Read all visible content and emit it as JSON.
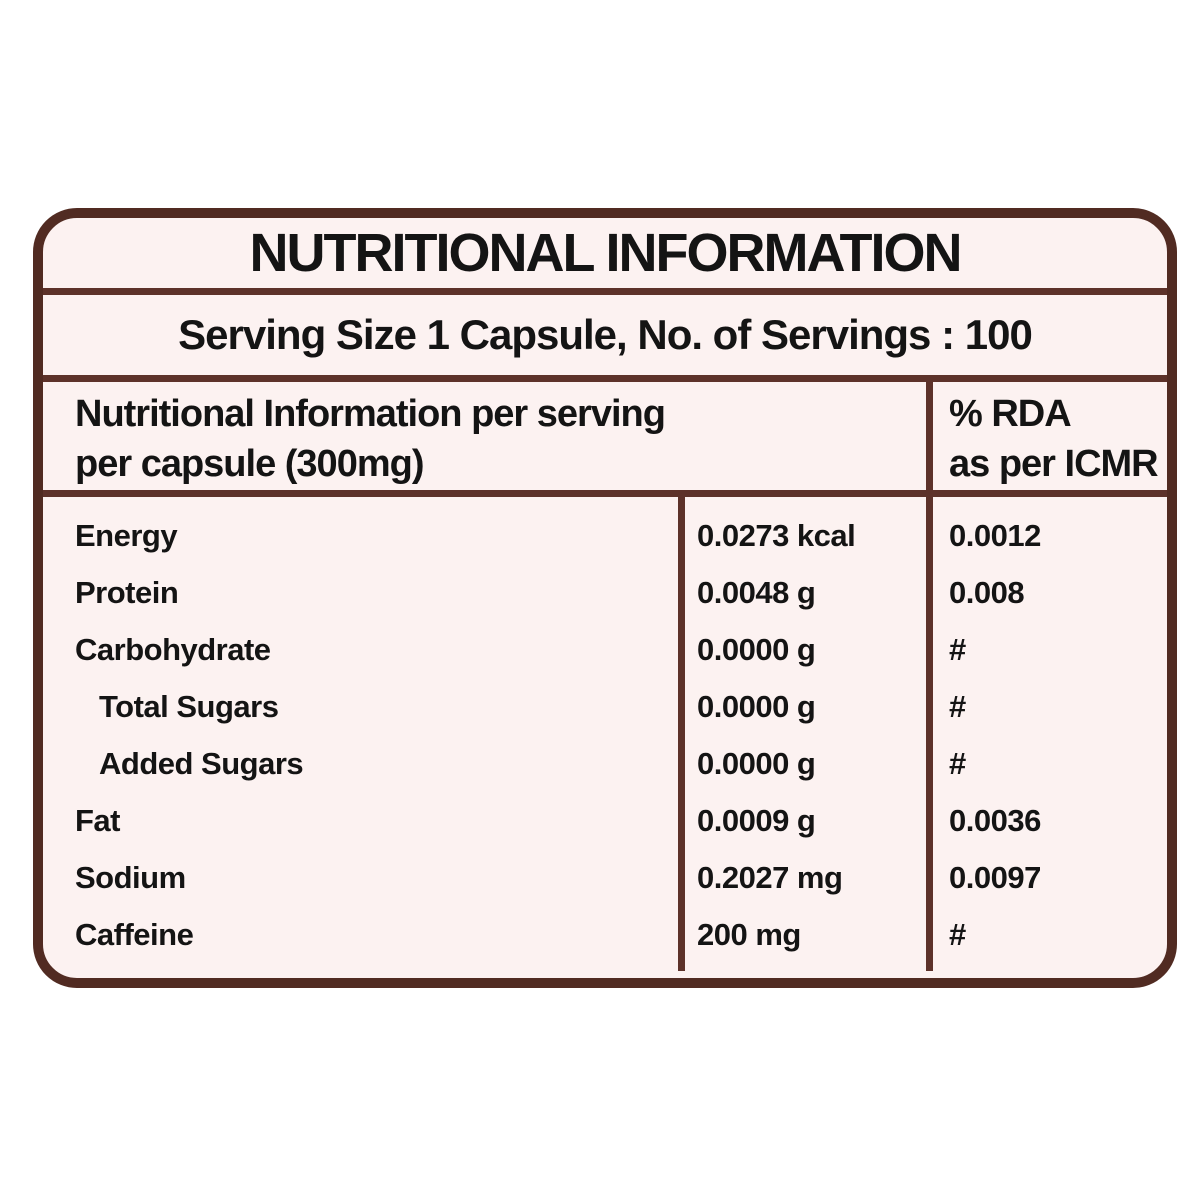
{
  "label": {
    "title": "NUTRITIONAL INFORMATION",
    "serving_line": "Serving Size 1 Capsule, No. of Servings : 100",
    "header": {
      "info_line1": "Nutritional Information per serving",
      "info_line2": "per capsule (300mg)",
      "rda_line1": "% RDA",
      "rda_line2": "as per ICMR"
    },
    "rows": [
      {
        "name": "Energy",
        "value": "0.0273 kcal",
        "rda": "0.0012",
        "indent": false
      },
      {
        "name": "Protein",
        "value": "0.0048 g",
        "rda": "0.008",
        "indent": false
      },
      {
        "name": "Carbohydrate",
        "value": "0.0000 g",
        "rda": "#",
        "indent": false
      },
      {
        "name": "Total Sugars",
        "value": "0.0000 g",
        "rda": "#",
        "indent": true
      },
      {
        "name": "Added Sugars",
        "value": "0.0000 g",
        "rda": "#",
        "indent": true
      },
      {
        "name": "Fat",
        "value": "0.0009 g",
        "rda": "0.0036",
        "indent": false
      },
      {
        "name": "Sodium",
        "value": "0.2027 mg",
        "rda": "0.0097",
        "indent": false
      },
      {
        "name": "Caffeine",
        "value": "200 mg",
        "rda": "#",
        "indent": false
      }
    ],
    "colors": {
      "card_background": "#fcf2f1",
      "border": "#512b22",
      "divider": "#5d322a",
      "text": "#141414",
      "page_background": "#ffffff"
    }
  }
}
